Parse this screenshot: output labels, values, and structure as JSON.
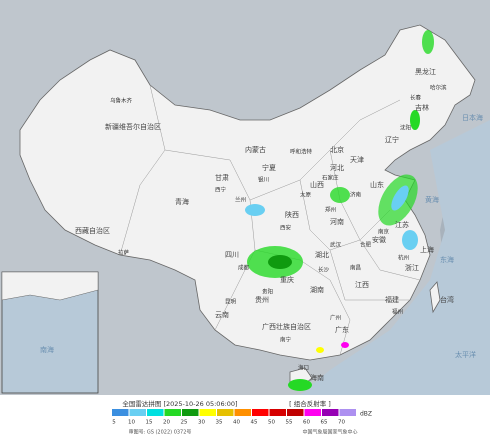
{
  "map": {
    "labels": [
      "新疆维吾尔自治区",
      "西藏自治区",
      "青海",
      "甘肃",
      "内蒙古",
      "黑龙江",
      "吉林",
      "辽宁",
      "河北",
      "山西",
      "陕西",
      "宁夏",
      "山东",
      "河南",
      "湖北",
      "四川",
      "重庆",
      "贵州",
      "云南",
      "湖南",
      "江西",
      "广西壮族自治区",
      "广东",
      "福建",
      "浙江",
      "安徽",
      "江苏",
      "台湾",
      "海南",
      "上海",
      "北京",
      "天津"
    ],
    "cities": [
      "乌鲁木齐",
      "拉萨",
      "西宁",
      "兰州",
      "银川",
      "呼和浩特",
      "哈尔滨",
      "长春",
      "沈阳",
      "石家庄",
      "太原",
      "西安",
      "郑州",
      "济南",
      "武汉",
      "成都",
      "贵阳",
      "昆明",
      "长沙",
      "南昌",
      "广州",
      "南宁",
      "福州",
      "杭州",
      "南京",
      "合肥",
      "海口"
    ],
    "seas": [
      "日本海",
      "黄海",
      "东海",
      "太平洋",
      "南海"
    ]
  },
  "legend": {
    "title": "全国雷达拼图 [2025-10-26 05:06:00]",
    "product": "[ 组合反射率 ]",
    "unit": "dBZ",
    "values": [
      5,
      10,
      15,
      20,
      25,
      30,
      35,
      40,
      45,
      50,
      55,
      60,
      65,
      70
    ],
    "colors": [
      "#3b8fe0",
      "#69cff2",
      "#00e0e0",
      "#25d925",
      "#0f9a0f",
      "#ffff00",
      "#e6c000",
      "#ff9000",
      "#ff0000",
      "#d60000",
      "#c00000",
      "#ff00f0",
      "#9600b4",
      "#ad90f0"
    ],
    "approval": "审图号: GS (2022) 0372号",
    "source": "中国气象局国家气象中心"
  }
}
